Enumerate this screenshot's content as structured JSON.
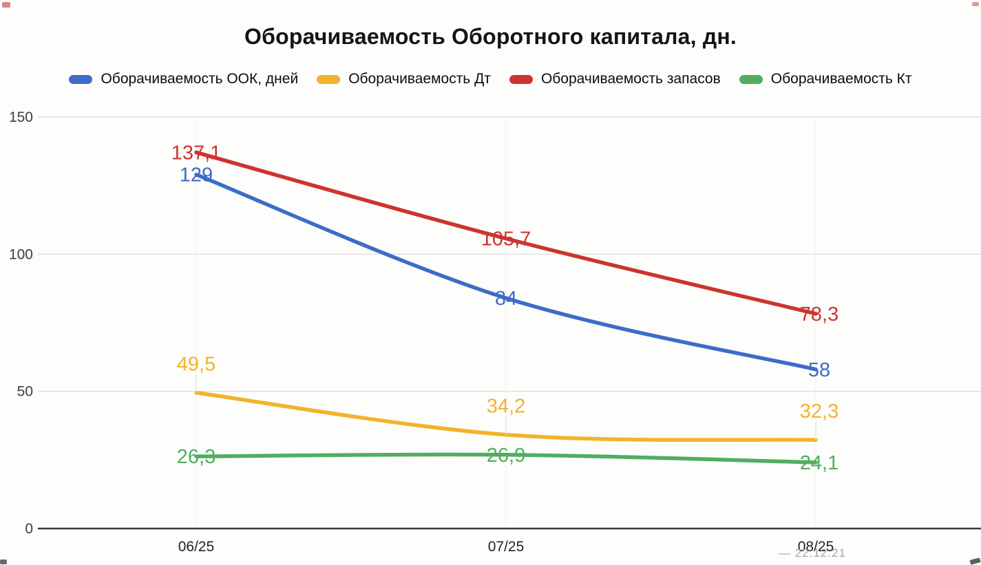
{
  "title": "Оборачиваемость Оборотного капитала, дн.",
  "watermark": "— 22.12.21",
  "colors": {
    "blue": "#3D6CC9",
    "yellow": "#F2B32A",
    "red": "#CC342E",
    "green": "#52AD61",
    "grid": "#d9d9d9",
    "vgrid": "#efefed",
    "axis": "#3a3a3a",
    "tick_text": "#3c3c3c",
    "x_text": "#222222",
    "leader": "#e3e3e0"
  },
  "chart_data": {
    "type": "line",
    "title": "Оборачиваемость Оборотного капитала, дн.",
    "x": [
      "06/25",
      "07/25",
      "08/25"
    ],
    "series": [
      {
        "name": "Оборачиваемость ООК, дней",
        "color": "#3D6CC9",
        "values": [
          129,
          84,
          58
        ],
        "labels": [
          "129",
          "84",
          "58"
        ],
        "label_offset_y": 0,
        "leader": false
      },
      {
        "name": "Оборачиваемость Дт",
        "color": "#F2B32A",
        "values": [
          49.5,
          34.2,
          32.3
        ],
        "labels": [
          "49,5",
          "34,2",
          "32,3"
        ],
        "label_offset_y": -42,
        "leader": true
      },
      {
        "name": "Оборачиваемость запасов",
        "color": "#CC342E",
        "values": [
          137.1,
          105.7,
          78.3
        ],
        "labels": [
          "137,1",
          "105,7",
          "78,3"
        ],
        "label_offset_y": 0,
        "leader": false
      },
      {
        "name": "Оборачиваемость Кт",
        "color": "#52AD61",
        "values": [
          26.3,
          26.9,
          24.1
        ],
        "labels": [
          "26,3",
          "26,9",
          "24,1"
        ],
        "label_offset_y": 0,
        "leader": false
      }
    ],
    "ylim": [
      0,
      150
    ],
    "yticks": [
      0,
      50,
      100,
      150
    ],
    "ytick_labels": [
      "0",
      "50",
      "100",
      "150"
    ],
    "grid": true,
    "legend_position": "top",
    "smooth": true
  }
}
